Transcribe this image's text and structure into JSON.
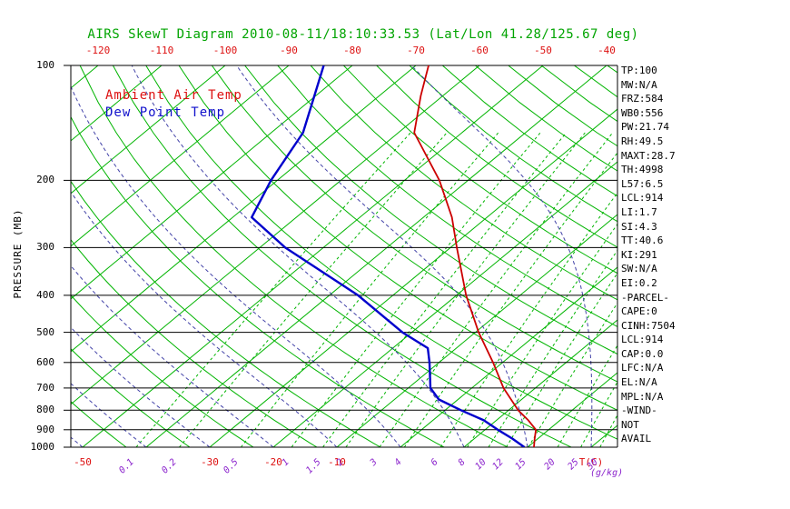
{
  "title": "AIRS SkewT Diagram 2010-08-11/18:10:33.53 (Lat/Lon 41.28/125.67 deg)",
  "legend": {
    "temp": "Ambient Air Temp",
    "dewpoint": "Dew Point Temp"
  },
  "axes": {
    "pressure_label": "PRESSURE (MB)",
    "pressure_ticks": [
      100,
      200,
      300,
      400,
      500,
      600,
      700,
      800,
      900,
      1000
    ],
    "top_temp_ticks": [
      -120,
      -110,
      -100,
      -90,
      -80,
      -70,
      -60,
      -50,
      -40
    ],
    "bottom_temp_ticks": [
      -50,
      -30,
      -20,
      -10
    ],
    "temp_unit_label": "T(C)",
    "mixing_ratios": [
      0.1,
      0.2,
      0.5,
      1,
      1.5,
      2,
      3,
      4,
      6,
      8,
      10,
      12,
      15,
      20,
      25,
      30
    ],
    "mixing_unit_label": "(g/kg)"
  },
  "stats": [
    "TP:100",
    "MW:N/A",
    "FRZ:584",
    "WB0:556",
    "PW:21.74",
    "RH:49.5",
    "MAXT:28.7",
    "TH:4998",
    "L57:6.5",
    "LCL:914",
    "LI:1.7",
    "SI:4.3",
    "TT:40.6",
    "KI:291",
    "SW:N/A",
    "EI:0.2",
    "-PARCEL-",
    "CAPE:0",
    "CINH:7504",
    "LCL:914",
    "CAP:0.0",
    "LFC:N/A",
    "EL:N/A",
    "MPL:N/A",
    "-WIND-",
    "NOT",
    "AVAIL"
  ],
  "colors": {
    "title_green": "#00a400",
    "grid_green": "#00b400",
    "axis_black": "#000000",
    "temp_red": "#dd1111",
    "dew_blue": "#1111cc",
    "moist_navy": "#4343a8",
    "mixing_purple": "#8a22cc"
  },
  "chart_data": {
    "type": "line",
    "title": "AIRS SkewT Diagram 2010-08-11/18:10:33.53 (Lat/Lon 41.28/125.67 deg)",
    "x_axis": {
      "label": "T(C)",
      "top_tick_labels": [
        -120,
        -110,
        -100,
        -90,
        -80,
        -70,
        -60,
        -50,
        -40
      ],
      "bottom_tick_labels": [
        -50,
        -30,
        -20,
        -10
      ],
      "skewed": true
    },
    "y_axis": {
      "label": "PRESSURE (MB)",
      "scale": "log",
      "range": [
        1000,
        100
      ],
      "ticks": [
        100,
        200,
        300,
        400,
        500,
        600,
        700,
        800,
        900,
        1000
      ]
    },
    "grid": {
      "isotherm_step_degC": 10,
      "isotherms": "green solid",
      "dry_adiabats": "green solid",
      "moist_adiabats": "navy dashed",
      "mixing_ratio_lines": "green dashed"
    },
    "mixing_ratio_lines_g_per_kg": [
      0.1,
      0.2,
      0.5,
      1,
      1.5,
      2,
      3,
      4,
      6,
      8,
      10,
      12,
      15,
      20,
      25,
      30
    ],
    "legend_position": "top-left inside plot",
    "series": [
      {
        "name": "Ambient Air Temp",
        "color": "#cc0000",
        "points_p_t": [
          [
            1000,
            21
          ],
          [
            950,
            19.5
          ],
          [
            900,
            18
          ],
          [
            850,
            15
          ],
          [
            800,
            11.5
          ],
          [
            700,
            5
          ],
          [
            600,
            -1.5
          ],
          [
            500,
            -9.5
          ],
          [
            400,
            -18.5
          ],
          [
            300,
            -29
          ],
          [
            250,
            -35.5
          ],
          [
            200,
            -44.5
          ],
          [
            150,
            -57.5
          ],
          [
            120,
            -63.5
          ],
          [
            100,
            -68
          ]
        ]
      },
      {
        "name": "Dew Point Temp",
        "color": "#0000cc",
        "points_p_t": [
          [
            1000,
            19.5
          ],
          [
            950,
            16
          ],
          [
            900,
            12
          ],
          [
            850,
            8
          ],
          [
            800,
            2.5
          ],
          [
            750,
            -3
          ],
          [
            700,
            -6.5
          ],
          [
            600,
            -11.5
          ],
          [
            550,
            -14.5
          ],
          [
            500,
            -21.5
          ],
          [
            400,
            -35.5
          ],
          [
            300,
            -56
          ],
          [
            250,
            -67
          ],
          [
            200,
            -71
          ],
          [
            150,
            -75
          ],
          [
            100,
            -84.5
          ]
        ]
      }
    ]
  }
}
